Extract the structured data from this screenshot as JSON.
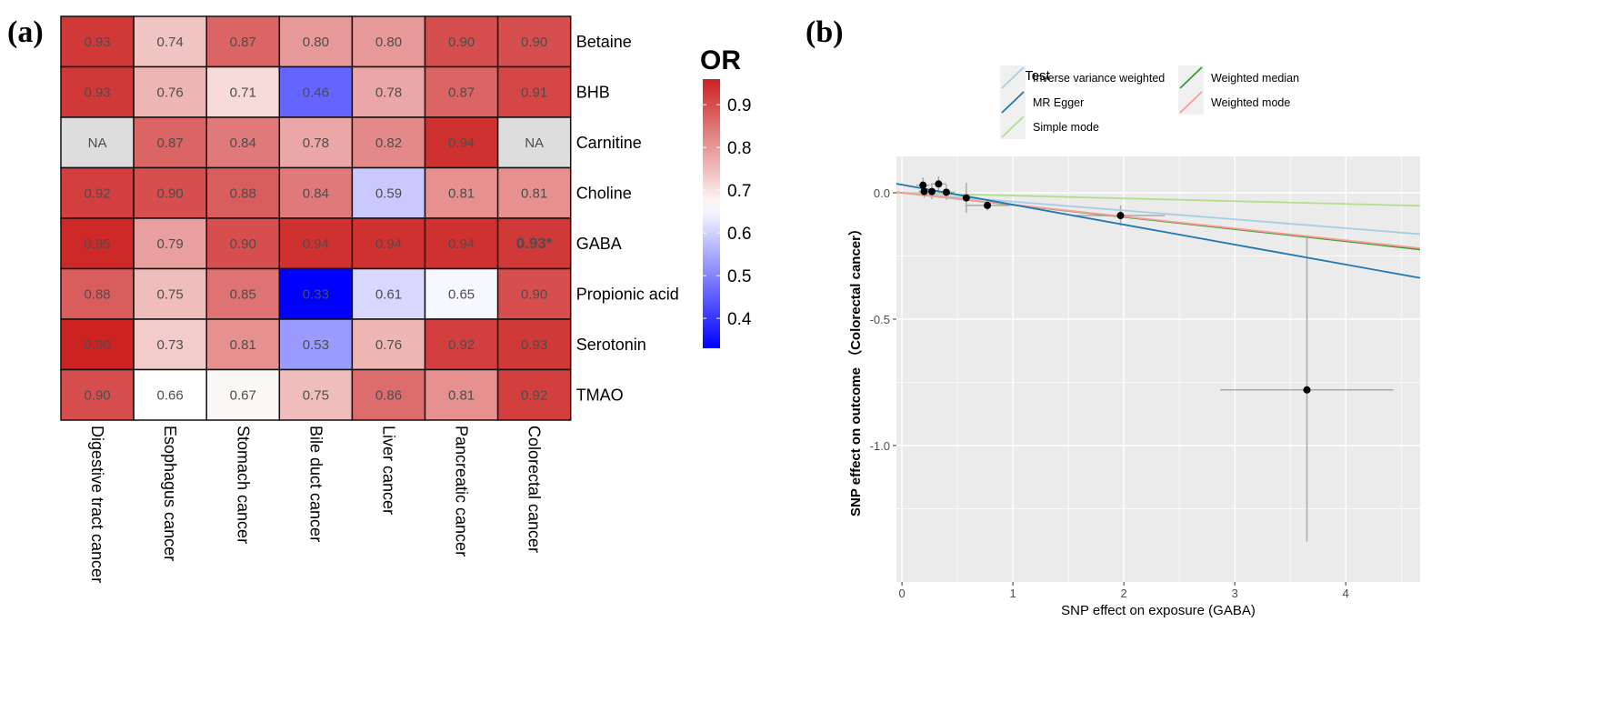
{
  "chart_data": [
    {
      "type": "heatmap",
      "panel_label": "(a)",
      "rows": [
        "Betaine",
        "BHB",
        "Carnitine",
        "Choline",
        "GABA",
        "Propionic acid",
        "Serotonin",
        "TMAO"
      ],
      "columns": [
        "Digestive tract cancer",
        "Esophagus cancer",
        "Stomach cancer",
        "Bile duct cancer",
        "Liver cancer",
        "Pancreatic cancer",
        "Colorectal cancer"
      ],
      "values": [
        [
          0.93,
          0.74,
          0.87,
          0.8,
          0.8,
          0.9,
          0.9
        ],
        [
          0.93,
          0.76,
          0.71,
          0.46,
          0.78,
          0.87,
          0.91
        ],
        [
          null,
          0.87,
          0.84,
          0.78,
          0.82,
          0.94,
          null
        ],
        [
          0.92,
          0.9,
          0.88,
          0.84,
          0.59,
          0.81,
          0.81
        ],
        [
          0.95,
          0.79,
          0.9,
          0.94,
          0.94,
          0.94,
          0.93
        ],
        [
          0.88,
          0.75,
          0.85,
          0.33,
          0.61,
          0.65,
          0.9
        ],
        [
          0.96,
          0.73,
          0.81,
          0.53,
          0.76,
          0.92,
          0.93
        ],
        [
          0.9,
          0.66,
          0.67,
          0.75,
          0.86,
          0.81,
          0.92
        ]
      ],
      "labels": [
        [
          "0.93",
          "0.74",
          "0.87",
          "0.80",
          "0.80",
          "0.90",
          "0.90"
        ],
        [
          "0.93",
          "0.76",
          "0.71",
          "0.46",
          "0.78",
          "0.87",
          "0.91"
        ],
        [
          "NA",
          "0.87",
          "0.84",
          "0.78",
          "0.82",
          "0.94",
          "NA"
        ],
        [
          "0.92",
          "0.90",
          "0.88",
          "0.84",
          "0.59",
          "0.81",
          "0.81"
        ],
        [
          "0.95",
          "0.79",
          "0.90",
          "0.94",
          "0.94",
          "0.94",
          "0.93*"
        ],
        [
          "0.88",
          "0.75",
          "0.85",
          "0.33",
          "0.61",
          "0.65",
          "0.90"
        ],
        [
          "0.96",
          "0.73",
          "0.81",
          "0.53",
          "0.76",
          "0.92",
          "0.93"
        ],
        [
          "0.90",
          "0.66",
          "0.67",
          "0.75",
          "0.86",
          "0.81",
          "0.92"
        ]
      ],
      "highlight": {
        "row": 4,
        "col": 6
      },
      "legend": {
        "title": "OR",
        "ticks": [
          "0.9",
          "0.8",
          "0.7",
          "0.6",
          "0.5",
          "0.4"
        ],
        "range": [
          0.33,
          0.96
        ],
        "mid": 0.66
      },
      "colors": {
        "low": "#0000FF",
        "mid": "#FFFFFF",
        "high": "#CC2222",
        "na": "#DDDDDD",
        "text": "#4d4d4d"
      }
    },
    {
      "type": "scatter",
      "panel_label": "(b)",
      "xlabel": "SNP effect on exposure (GABA)",
      "ylabel": "SNP effect on outcome （Colorectal cancer）",
      "xlim": [
        -0.05,
        4.67
      ],
      "ylim": [
        -1.54,
        0.144
      ],
      "xticks": [
        0,
        1,
        2,
        3,
        4
      ],
      "xtick_labels": [
        "0",
        "1",
        "2",
        "3",
        "4"
      ],
      "yticks": [
        0,
        -0.5,
        -1.0
      ],
      "ytick_labels": [
        "0.0",
        "-0.5",
        "-1.0"
      ],
      "points": [
        {
          "x": 0.19,
          "y": 0.03,
          "xerr": 0.06,
          "yerr": 0.03
        },
        {
          "x": 0.33,
          "y": 0.035,
          "xerr": 0.07,
          "yerr": 0.03
        },
        {
          "x": 0.2,
          "y": 0.005,
          "xerr": 0.05,
          "yerr": 0.025
        },
        {
          "x": 0.27,
          "y": 0.005,
          "xerr": 0.06,
          "yerr": 0.03
        },
        {
          "x": 0.4,
          "y": 0.002,
          "xerr": 0.08,
          "yerr": 0.03
        },
        {
          "x": 0.58,
          "y": -0.02,
          "xerr": 0.1,
          "yerr": 0.06
        },
        {
          "x": 0.77,
          "y": -0.05,
          "xerr": 0.2,
          "yerr": 0.02
        },
        {
          "x": 1.97,
          "y": -0.09,
          "xerr": 0.4,
          "yerr": 0.04
        },
        {
          "x": 3.65,
          "y": -0.78,
          "xerr": 0.78,
          "yerr": 0.6
        }
      ],
      "legend": {
        "title": "MR Test",
        "entries": [
          {
            "name": "Inverse variance weighted",
            "color": "#A6CEE3"
          },
          {
            "name": "MR Egger",
            "color": "#1F78B4"
          },
          {
            "name": "Simple mode",
            "color": "#B2DF8A"
          },
          {
            "name": "Weighted median",
            "color": "#33A02C"
          },
          {
            "name": "Weighted mode",
            "color": "#FB9A99"
          }
        ]
      },
      "lines": [
        {
          "name": "Simple mode",
          "intercept": 0,
          "slope": -0.011
        },
        {
          "name": "Inverse variance weighted",
          "intercept": 0,
          "slope": -0.035
        },
        {
          "name": "Weighted median",
          "intercept": 0,
          "slope": -0.048
        },
        {
          "name": "Weighted mode",
          "intercept": 0,
          "slope": -0.047
        },
        {
          "name": "MR Egger",
          "intercept": 0.032,
          "slope": -0.079
        }
      ]
    }
  ]
}
